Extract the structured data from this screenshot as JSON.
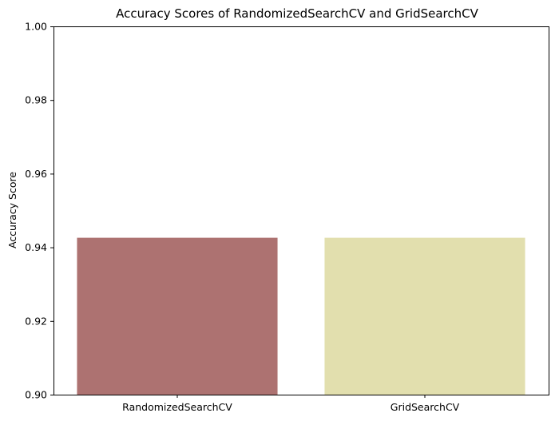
{
  "chart_data": {
    "type": "bar",
    "title": "Accuracy Scores of RandomizedSearchCV and GridSearchCV",
    "xlabel": "",
    "ylabel": "Accuracy Score",
    "categories": [
      "RandomizedSearchCV",
      "GridSearchCV"
    ],
    "values": [
      0.9426,
      0.9426
    ],
    "bar_colors": [
      "#ad7271",
      "#e2dfae"
    ],
    "ylim": [
      0.9,
      1.0
    ],
    "yticks": [
      0.9,
      0.92,
      0.94,
      0.96,
      0.98,
      1.0
    ],
    "ytick_labels": [
      "0.90",
      "0.92",
      "0.94",
      "0.96",
      "0.98",
      "1.00"
    ],
    "grid": false,
    "legend": "none"
  }
}
